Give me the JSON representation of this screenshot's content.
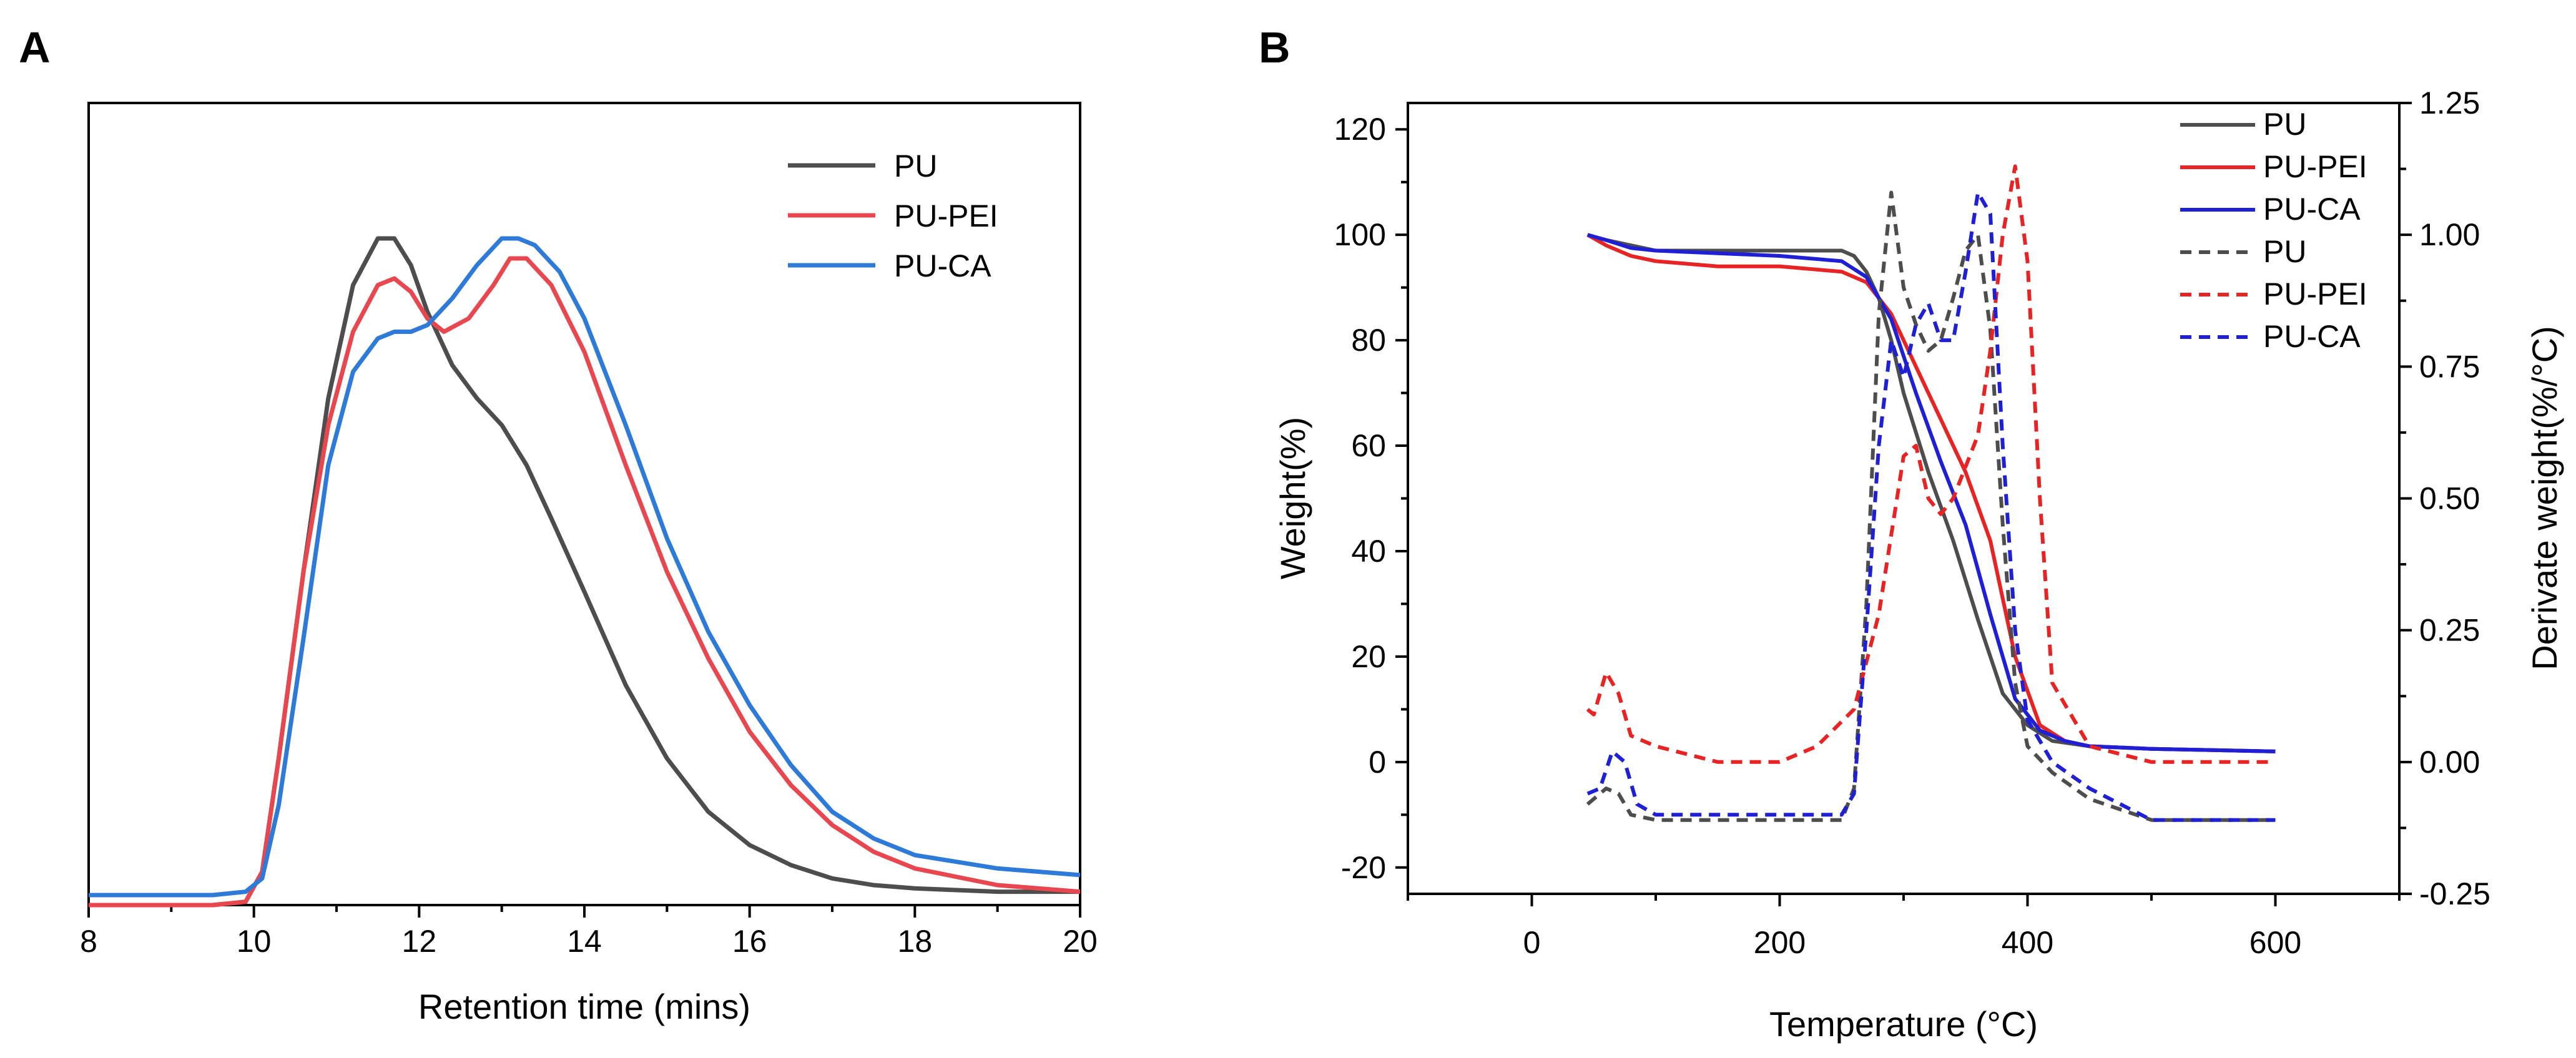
{
  "chart_data": [
    {
      "panel": "A",
      "type": "line",
      "xlabel": "Retention time (mins)",
      "ylabel": "",
      "xlim": [
        8,
        20
      ],
      "ylim": [
        0,
        1.0
      ],
      "xticks": [
        "8",
        "10",
        "12",
        "14",
        "16",
        "18",
        "20"
      ],
      "y_ticks_shown": false,
      "legend": "top-right",
      "series": [
        {
          "name": "PU",
          "color": "#4d4d4d",
          "style": "solid",
          "x": [
            8,
            9.5,
            9.9,
            10.1,
            10.3,
            10.6,
            10.9,
            11.2,
            11.5,
            11.7,
            11.9,
            12.1,
            12.4,
            12.7,
            13.0,
            13.3,
            13.6,
            14.0,
            14.5,
            15.0,
            15.5,
            16.0,
            16.5,
            17.0,
            17.5,
            18.0,
            19.0,
            20.0
          ],
          "y": [
            0.0,
            0.0,
            0.005,
            0.05,
            0.22,
            0.5,
            0.76,
            0.93,
            1.0,
            1.0,
            0.96,
            0.89,
            0.81,
            0.76,
            0.72,
            0.66,
            0.58,
            0.47,
            0.33,
            0.22,
            0.14,
            0.09,
            0.06,
            0.04,
            0.03,
            0.025,
            0.02,
            0.02
          ]
        },
        {
          "name": "PU-PEI",
          "color": "#e8474f",
          "style": "solid",
          "x": [
            8,
            9.5,
            9.9,
            10.1,
            10.3,
            10.6,
            10.9,
            11.2,
            11.5,
            11.7,
            11.9,
            12.1,
            12.3,
            12.6,
            12.9,
            13.1,
            13.3,
            13.6,
            14.0,
            14.5,
            15.0,
            15.5,
            16.0,
            16.5,
            17.0,
            17.5,
            18.0,
            19.0,
            20.0
          ],
          "y": [
            0.0,
            0.0,
            0.005,
            0.05,
            0.22,
            0.5,
            0.72,
            0.86,
            0.93,
            0.94,
            0.92,
            0.88,
            0.86,
            0.88,
            0.93,
            0.97,
            0.97,
            0.93,
            0.83,
            0.66,
            0.5,
            0.37,
            0.26,
            0.18,
            0.12,
            0.08,
            0.055,
            0.03,
            0.02
          ]
        },
        {
          "name": "PU-CA",
          "color": "#2e7ad8",
          "style": "solid",
          "x": [
            8,
            9.5,
            9.9,
            10.1,
            10.3,
            10.6,
            10.9,
            11.2,
            11.5,
            11.7,
            11.9,
            12.1,
            12.4,
            12.7,
            13.0,
            13.2,
            13.4,
            13.7,
            14.0,
            14.5,
            15.0,
            15.5,
            16.0,
            16.5,
            17.0,
            17.5,
            18.0,
            19.0,
            20.0
          ],
          "y": [
            0.015,
            0.015,
            0.02,
            0.04,
            0.15,
            0.4,
            0.66,
            0.8,
            0.85,
            0.86,
            0.86,
            0.87,
            0.91,
            0.96,
            1.0,
            1.0,
            0.99,
            0.95,
            0.88,
            0.72,
            0.55,
            0.41,
            0.3,
            0.21,
            0.14,
            0.1,
            0.075,
            0.055,
            0.045
          ]
        }
      ]
    },
    {
      "panel": "B",
      "type": "line",
      "xlabel": "Temperature (°C)",
      "ylabel": "Weight(%)",
      "y2label": "Derivate weight(%/°C)",
      "xlim": [
        -100,
        700
      ],
      "ylim": [
        -25,
        125
      ],
      "y2lim": [
        -0.25,
        1.25
      ],
      "xticks": [
        "0",
        "200",
        "400",
        "600"
      ],
      "yticks": [
        "-20",
        "0",
        "20",
        "40",
        "60",
        "80",
        "100",
        "120"
      ],
      "y2ticks": [
        "-0.25",
        "0.00",
        "0.25",
        "0.50",
        "0.75",
        "1.00",
        "1.25"
      ],
      "legend": "top-right",
      "series": [
        {
          "name": "PU",
          "color": "#4d4d4d",
          "style": "solid",
          "axis": "left",
          "x": [
            45,
            60,
            80,
            100,
            150,
            200,
            250,
            260,
            270,
            280,
            290,
            300,
            320,
            340,
            360,
            380,
            400,
            420,
            450,
            500,
            600
          ],
          "y": [
            100,
            99,
            98,
            97,
            97,
            97,
            97,
            96,
            93,
            88,
            80,
            70,
            55,
            42,
            27,
            13,
            7,
            4,
            3,
            2.5,
            2
          ]
        },
        {
          "name": "PU-PEI",
          "color": "#e82323",
          "style": "solid",
          "axis": "left",
          "x": [
            45,
            60,
            80,
            100,
            150,
            200,
            250,
            270,
            290,
            310,
            330,
            350,
            370,
            390,
            410,
            430,
            450,
            500,
            600
          ],
          "y": [
            100,
            98,
            96,
            95,
            94,
            94,
            93,
            91,
            85,
            75,
            65,
            55,
            42,
            20,
            7,
            4,
            3,
            2.5,
            2
          ]
        },
        {
          "name": "PU-CA",
          "color": "#1f1fd6",
          "style": "solid",
          "axis": "left",
          "x": [
            45,
            60,
            80,
            100,
            150,
            200,
            250,
            270,
            290,
            310,
            330,
            350,
            370,
            390,
            410,
            430,
            450,
            500,
            600
          ],
          "y": [
            100,
            99,
            97.5,
            97,
            96.5,
            96,
            95,
            92,
            84,
            70,
            57,
            45,
            28,
            12,
            6,
            4,
            3,
            2.5,
            2
          ]
        },
        {
          "name": "PU",
          "color": "#4d4d4d",
          "style": "dashed",
          "axis": "right",
          "x": [
            45,
            60,
            70,
            80,
            100,
            150,
            200,
            250,
            260,
            270,
            280,
            290,
            300,
            310,
            320,
            330,
            340,
            350,
            360,
            370,
            380,
            390,
            400,
            420,
            450,
            500,
            600
          ],
          "y": [
            -0.08,
            -0.05,
            -0.06,
            -0.1,
            -0.11,
            -0.11,
            -0.11,
            -0.11,
            -0.05,
            0.3,
            0.85,
            1.08,
            0.9,
            0.83,
            0.78,
            0.8,
            0.88,
            0.97,
            1.0,
            0.82,
            0.45,
            0.15,
            0.03,
            -0.02,
            -0.07,
            -0.11,
            -0.11
          ]
        },
        {
          "name": "PU-PEI",
          "color": "#e82323",
          "style": "dashed",
          "axis": "right",
          "x": [
            45,
            50,
            60,
            70,
            80,
            100,
            150,
            200,
            230,
            260,
            280,
            300,
            310,
            320,
            330,
            340,
            350,
            360,
            370,
            380,
            390,
            400,
            410,
            420,
            450,
            500,
            600
          ],
          "y": [
            0.1,
            0.09,
            0.17,
            0.13,
            0.05,
            0.03,
            0.0,
            0.0,
            0.03,
            0.1,
            0.28,
            0.58,
            0.6,
            0.5,
            0.47,
            0.5,
            0.56,
            0.62,
            0.78,
            1.0,
            1.13,
            0.95,
            0.5,
            0.15,
            0.03,
            0.0,
            0.0
          ]
        },
        {
          "name": "PU-CA",
          "color": "#1f1fd6",
          "style": "dashed",
          "axis": "right",
          "x": [
            45,
            55,
            65,
            75,
            85,
            100,
            150,
            180,
            200,
            250,
            260,
            270,
            280,
            290,
            300,
            310,
            320,
            330,
            340,
            350,
            360,
            370,
            380,
            390,
            400,
            420,
            450,
            500,
            600
          ],
          "y": [
            -0.06,
            -0.05,
            0.02,
            0.0,
            -0.08,
            -0.1,
            -0.1,
            -0.1,
            -0.1,
            -0.1,
            -0.06,
            0.25,
            0.6,
            0.8,
            0.73,
            0.83,
            0.87,
            0.8,
            0.8,
            0.93,
            1.08,
            1.04,
            0.6,
            0.25,
            0.08,
            0.0,
            -0.05,
            -0.11,
            -0.11
          ]
        }
      ]
    }
  ]
}
